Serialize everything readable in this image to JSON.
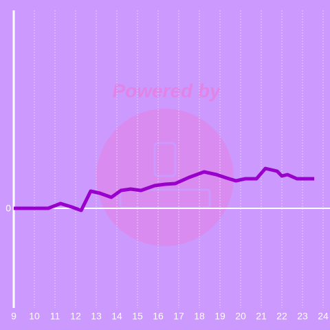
{
  "chart_data": {
    "type": "line",
    "watermark": "Powered by",
    "x": [
      9,
      10.67,
      11.27,
      11.8,
      12.27,
      12.73,
      13.17,
      13.73,
      14.2,
      14.67,
      15.17,
      15.83,
      16.33,
      16.83,
      17.5,
      18.23,
      18.83,
      19.33,
      19.77,
      20.23,
      20.77,
      21.2,
      21.77,
      22,
      22.27,
      22.73,
      23.57
    ],
    "series": [
      {
        "color": "#9900cc",
        "values": [
          0,
          0,
          0.7,
          0.2,
          -0.3,
          2.5,
          2.2,
          1.6,
          2.6,
          2.8,
          2.6,
          3.3,
          3.5,
          3.6,
          4.5,
          5.3,
          4.9,
          4.4,
          4,
          4.3,
          4.3,
          5.8,
          5.4,
          4.7,
          4.9,
          4.3,
          4.3
        ]
      }
    ],
    "xlim": [
      9,
      24
    ],
    "xticks": [
      9,
      10,
      11,
      12,
      13,
      14,
      15,
      16,
      17,
      18,
      19,
      20,
      21,
      22,
      23,
      24
    ],
    "ylim": [
      -14.5,
      28.8
    ],
    "yticks": [
      0
    ],
    "grid": true
  }
}
